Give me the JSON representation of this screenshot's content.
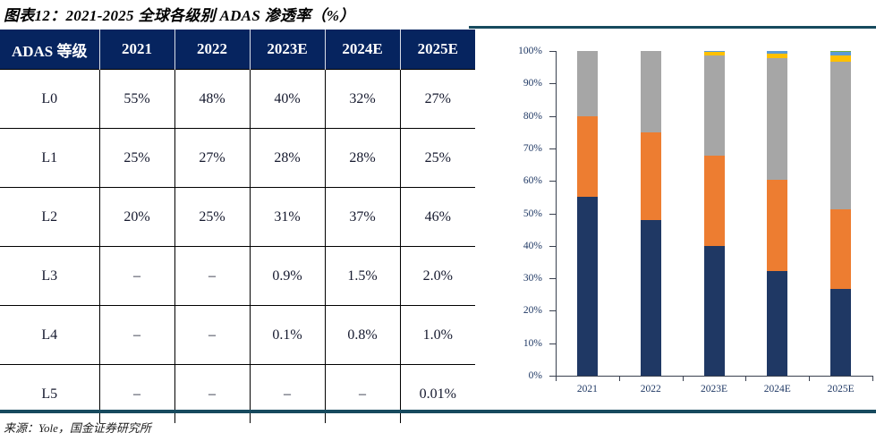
{
  "title": "图表12：2021-2025 全球各级别 ADAS 渗透率（%）",
  "source": "来源：Yole，国金证券研究所",
  "colors": {
    "header_bg": "#06245f",
    "rule": "#174a5e",
    "axis_text": "#1f3864"
  },
  "table": {
    "headers": [
      "ADAS 等级",
      "2021",
      "2022",
      "2023E",
      "2024E",
      "2025E"
    ],
    "rows": [
      {
        "label": "L0",
        "values": [
          "55%",
          "48%",
          "40%",
          "32%",
          "27%"
        ]
      },
      {
        "label": "L1",
        "values": [
          "25%",
          "27%",
          "28%",
          "28%",
          "25%"
        ]
      },
      {
        "label": "L2",
        "values": [
          "20%",
          "25%",
          "31%",
          "37%",
          "46%"
        ]
      },
      {
        "label": "L3",
        "values": [
          "–",
          "–",
          "0.9%",
          "1.5%",
          "2.0%"
        ]
      },
      {
        "label": "L4",
        "values": [
          "–",
          "–",
          "0.1%",
          "0.8%",
          "1.0%"
        ]
      },
      {
        "label": "L5",
        "values": [
          "–",
          "–",
          "–",
          "–",
          "0.01%"
        ]
      }
    ]
  },
  "chart_data": {
    "type": "bar",
    "stacked": true,
    "title": "",
    "xlabel": "",
    "ylabel": "",
    "categories": [
      "2021",
      "2022",
      "2023E",
      "2024E",
      "2025E"
    ],
    "series": [
      {
        "name": "L0",
        "color": "#1f3864",
        "values": [
          55,
          48,
          40,
          32,
          27
        ]
      },
      {
        "name": "L1",
        "color": "#ed7d31",
        "values": [
          25,
          27,
          28,
          28,
          25
        ]
      },
      {
        "name": "L2",
        "color": "#a6a6a6",
        "values": [
          20,
          25,
          31,
          37,
          46
        ]
      },
      {
        "name": "L3",
        "color": "#ffc000",
        "values": [
          0,
          0,
          0.9,
          1.5,
          2.0
        ]
      },
      {
        "name": "L4",
        "color": "#5b9bd5",
        "values": [
          0,
          0,
          0.1,
          0.8,
          1.0
        ]
      },
      {
        "name": "L5",
        "color": "#70ad47",
        "values": [
          0,
          0,
          0,
          0,
          0.01
        ]
      }
    ],
    "ylim": [
      0,
      100
    ],
    "yticks": [
      "0%",
      "10%",
      "20%",
      "30%",
      "40%",
      "50%",
      "60%",
      "70%",
      "80%",
      "90%",
      "100%"
    ],
    "grid": false,
    "legend_position": "none"
  }
}
